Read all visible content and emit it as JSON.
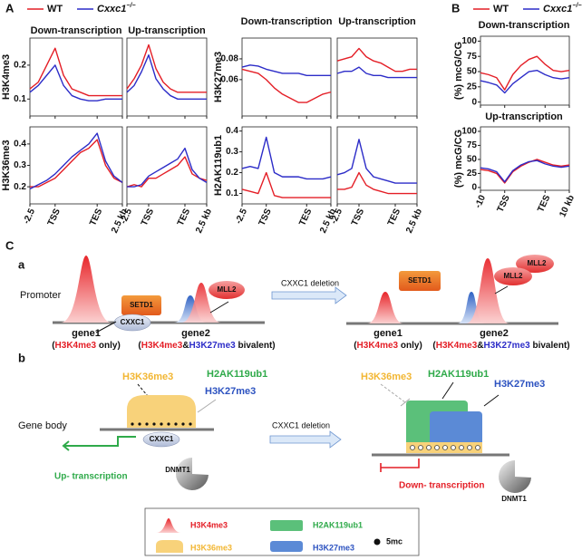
{
  "legend": [
    {
      "name": "WT",
      "color": "#e41e26"
    },
    {
      "name": "Cxxc1",
      "sup": "−/−",
      "color": "#2c2cc8"
    }
  ],
  "panel_a": {
    "label": "A",
    "xlim": [
      0,
      11
    ],
    "xticks": [
      {
        "value": 0,
        "label": "-2.5"
      },
      {
        "value": 3,
        "label": "TSS"
      },
      {
        "value": 8,
        "label": "TES"
      },
      {
        "value": 11,
        "label": "2.5 kb"
      }
    ],
    "blocks": [
      {
        "titles": [
          "Down-transcription",
          "Up-transcription"
        ],
        "rows": [
          {
            "ylabel": "H3K4me3",
            "ylim": [
              0.05,
              0.28
            ],
            "yticks": [
              0.1,
              0.2
            ],
            "charts": [
              {
                "series": [
                  [
                    0.13,
                    0.15,
                    0.2,
                    0.25,
                    0.17,
                    0.13,
                    0.12,
                    0.11,
                    0.11,
                    0.11,
                    0.11,
                    0.11
                  ],
                  [
                    0.12,
                    0.14,
                    0.17,
                    0.2,
                    0.14,
                    0.11,
                    0.1,
                    0.095,
                    0.095,
                    0.1,
                    0.1,
                    0.1
                  ]
                ]
              },
              {
                "series": [
                  [
                    0.13,
                    0.16,
                    0.2,
                    0.26,
                    0.19,
                    0.15,
                    0.13,
                    0.12,
                    0.12,
                    0.12,
                    0.12,
                    0.12
                  ],
                  [
                    0.12,
                    0.14,
                    0.18,
                    0.23,
                    0.16,
                    0.13,
                    0.11,
                    0.1,
                    0.1,
                    0.1,
                    0.1,
                    0.1
                  ]
                ]
              }
            ]
          },
          {
            "ylabel": "H3K36me3",
            "ylim": [
              0.12,
              0.48
            ],
            "yticks": [
              0.2,
              0.3,
              0.4
            ],
            "charts": [
              {
                "series": [
                  [
                    0.2,
                    0.2,
                    0.22,
                    0.24,
                    0.28,
                    0.32,
                    0.36,
                    0.38,
                    0.42,
                    0.3,
                    0.24,
                    0.22
                  ],
                  [
                    0.19,
                    0.21,
                    0.23,
                    0.26,
                    0.3,
                    0.34,
                    0.37,
                    0.4,
                    0.45,
                    0.32,
                    0.25,
                    0.22
                  ]
                ]
              },
              {
                "series": [
                  [
                    0.2,
                    0.21,
                    0.2,
                    0.24,
                    0.24,
                    0.26,
                    0.28,
                    0.3,
                    0.34,
                    0.26,
                    0.24,
                    0.23
                  ],
                  [
                    0.2,
                    0.2,
                    0.21,
                    0.25,
                    0.27,
                    0.29,
                    0.31,
                    0.33,
                    0.38,
                    0.28,
                    0.24,
                    0.22
                  ]
                ]
              }
            ]
          }
        ]
      },
      {
        "titles": [
          "Down-transcription",
          "Up-transcription"
        ],
        "rows": [
          {
            "ylabel": "H3K27me3",
            "ylim": [
              0.025,
              0.1
            ],
            "yticks": [
              0.06,
              0.08
            ],
            "charts": [
              {
                "series": [
                  [
                    0.07,
                    0.068,
                    0.066,
                    0.06,
                    0.052,
                    0.046,
                    0.042,
                    0.038,
                    0.038,
                    0.042,
                    0.046,
                    0.048
                  ],
                  [
                    0.072,
                    0.074,
                    0.073,
                    0.07,
                    0.068,
                    0.066,
                    0.066,
                    0.066,
                    0.064,
                    0.064,
                    0.064,
                    0.064
                  ]
                ]
              },
              {
                "series": [
                  [
                    0.078,
                    0.08,
                    0.082,
                    0.09,
                    0.082,
                    0.078,
                    0.076,
                    0.072,
                    0.068,
                    0.068,
                    0.07,
                    0.07
                  ],
                  [
                    0.066,
                    0.068,
                    0.068,
                    0.072,
                    0.066,
                    0.064,
                    0.064,
                    0.062,
                    0.062,
                    0.062,
                    0.062,
                    0.062
                  ]
                ]
              }
            ]
          },
          {
            "ylabel": "H2AK119ub1",
            "ylim": [
              0.05,
              0.42
            ],
            "yticks": [
              0.1,
              0.2,
              0.3,
              0.4
            ],
            "charts": [
              {
                "series": [
                  [
                    0.12,
                    0.11,
                    0.1,
                    0.2,
                    0.09,
                    0.08,
                    0.08,
                    0.08,
                    0.08,
                    0.08,
                    0.08,
                    0.08
                  ],
                  [
                    0.22,
                    0.23,
                    0.22,
                    0.37,
                    0.2,
                    0.18,
                    0.18,
                    0.18,
                    0.17,
                    0.17,
                    0.17,
                    0.18
                  ]
                ]
              },
              {
                "series": [
                  [
                    0.12,
                    0.12,
                    0.13,
                    0.2,
                    0.14,
                    0.12,
                    0.11,
                    0.1,
                    0.1,
                    0.1,
                    0.1,
                    0.1
                  ],
                  [
                    0.19,
                    0.2,
                    0.22,
                    0.36,
                    0.22,
                    0.18,
                    0.17,
                    0.16,
                    0.15,
                    0.15,
                    0.15,
                    0.15
                  ]
                ]
              }
            ]
          }
        ]
      }
    ]
  },
  "panel_b": {
    "label": "B",
    "ylabel": "(%) mcG/CG",
    "xlim": [
      0,
      11
    ],
    "xticks": [
      {
        "value": 0,
        "label": "-10"
      },
      {
        "value": 3,
        "label": "TSS"
      },
      {
        "value": 8,
        "label": "TES"
      },
      {
        "value": 11,
        "label": "10 kb"
      }
    ],
    "ylim": [
      -5,
      108
    ],
    "yticks": [
      0,
      25,
      50,
      75,
      100
    ],
    "rows": [
      {
        "title": "Down-transcription",
        "series": [
          [
            48,
            45,
            40,
            20,
            45,
            60,
            70,
            75,
            62,
            52,
            50,
            52
          ],
          [
            35,
            32,
            28,
            15,
            30,
            40,
            50,
            52,
            45,
            40,
            38,
            40
          ]
        ]
      },
      {
        "title": "Up-transcription",
        "series": [
          [
            32,
            30,
            25,
            8,
            28,
            38,
            45,
            50,
            45,
            40,
            38,
            40
          ],
          [
            35,
            33,
            28,
            10,
            30,
            40,
            46,
            48,
            42,
            38,
            36,
            38
          ]
        ]
      }
    ]
  },
  "panel_c": {
    "label": "C",
    "a": {
      "label": "a",
      "promoter": "Promoter",
      "setd1": "SETD1",
      "cxxc1": "CXXC1",
      "mll2": "MLL2",
      "deletion": "CXXC1 deletion",
      "gene1": "gene1",
      "gene2": "gene2",
      "only": [
        "(",
        "H3K4me3",
        " only)"
      ],
      "bivalent": [
        "(",
        "H3K4me3",
        "&",
        "H3K27me3",
        " bivalent)"
      ]
    },
    "b": {
      "label": "b",
      "gene_body": "Gene body",
      "h3k36me3": "H3K36me3",
      "h2ak119ub1": "H2AK119ub1",
      "h3k27me3": "H3K27me3",
      "up": "Up- transcription",
      "down": "Down- transcription",
      "cxxc1": "CXXC1",
      "dnmt1": "DNMT1",
      "deletion": "CXXC1 deletion"
    },
    "legend": [
      "H3K4me3",
      "H2AK119ub1",
      "5mc",
      "H3K36me3",
      "H3K27me3"
    ]
  }
}
